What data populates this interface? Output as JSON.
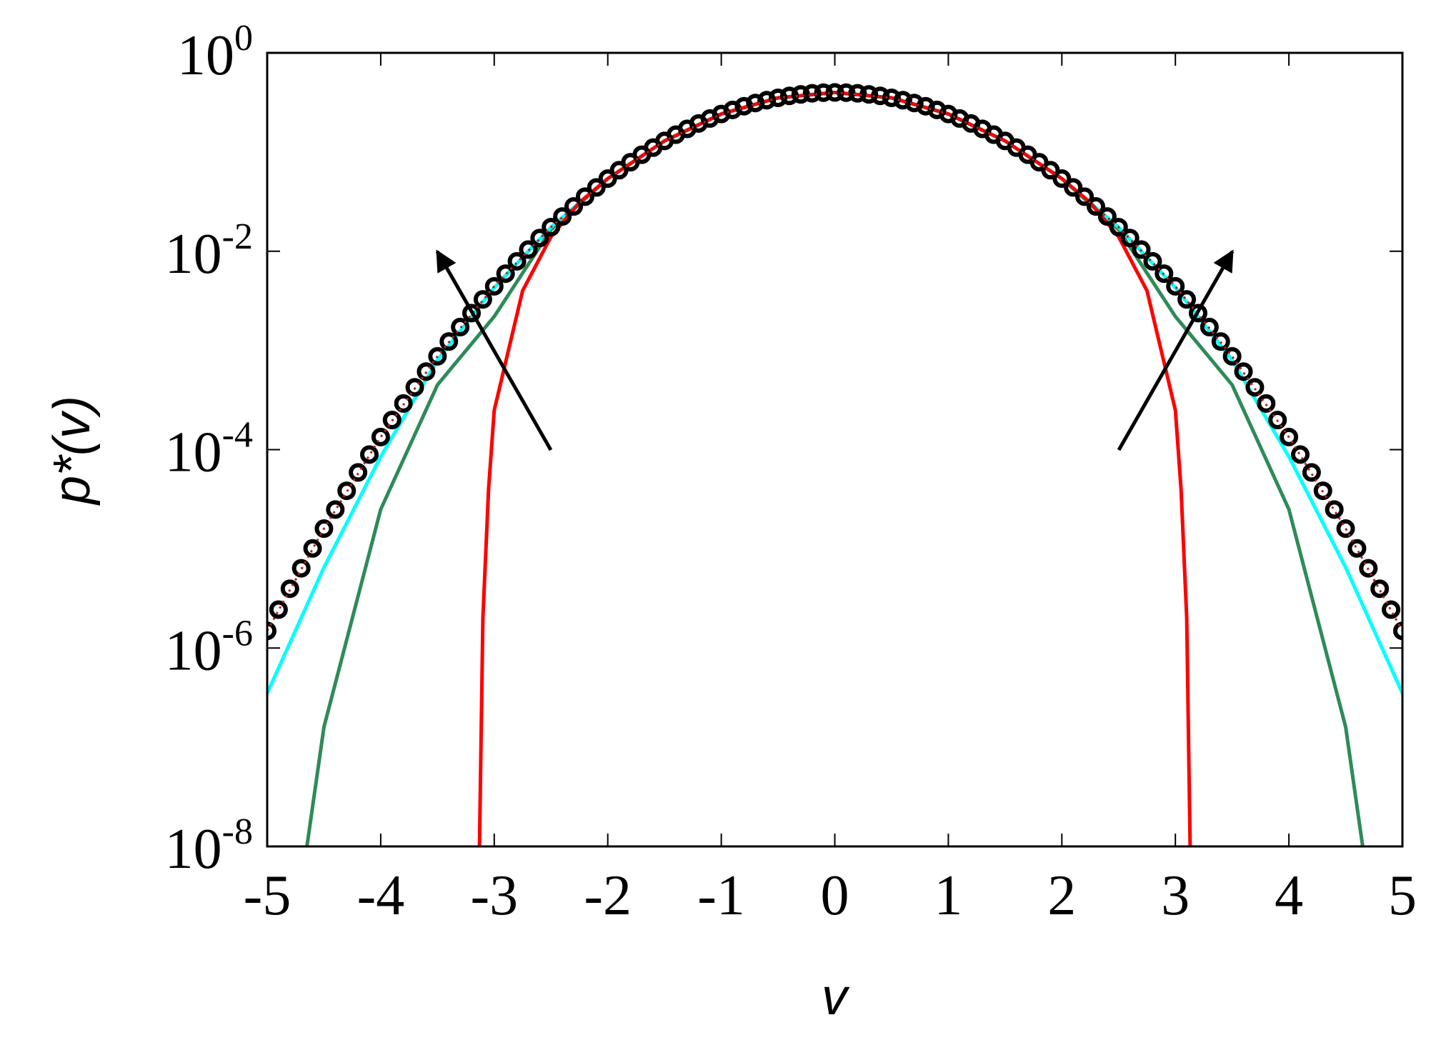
{
  "chart_data": {
    "type": "line",
    "x_label": "v",
    "y_label": "p*(v)",
    "xlim": [
      -5,
      5
    ],
    "ylim": [
      1e-08,
      1
    ],
    "y_scale": "log",
    "xticks": [
      -5,
      -4,
      -3,
      -2,
      -1,
      0,
      1,
      2,
      3,
      4,
      5
    ],
    "yticks": [
      {
        "value": 1e-08,
        "label": "10^-8"
      },
      {
        "value": 1e-06,
        "label": "10^-6"
      },
      {
        "value": 0.0001,
        "label": "10^-4"
      },
      {
        "value": 0.01,
        "label": "10^-2"
      },
      {
        "value": 1,
        "label": "10^0"
      }
    ],
    "series": [
      {
        "color": "#2e8b57",
        "style": "line",
        "x": [
          -4.65,
          -4.5,
          -4,
          -3.5,
          -3,
          -2.5,
          -2,
          -1.5,
          -1,
          -0.5,
          0,
          0.5,
          1,
          1.5,
          2,
          2.5,
          3,
          3.5,
          4,
          4.5,
          4.65
        ],
        "values": [
          1e-08,
          1.6e-07,
          2.5e-05,
          0.00045,
          0.0022,
          0.0165,
          0.054,
          0.1295,
          0.242,
          0.3521,
          0.3989,
          0.3521,
          0.242,
          0.1295,
          0.054,
          0.0165,
          0.0022,
          0.00045,
          2.5e-05,
          1.6e-07,
          1e-08
        ]
      },
      {
        "color": "#00ffff",
        "style": "line",
        "x": [
          -5,
          -4.5,
          -4,
          -3.5,
          -3,
          -2.5,
          -2,
          -1.5,
          -1,
          -0.5,
          0,
          0.5,
          1,
          1.5,
          2,
          2.5,
          3,
          3.5,
          4,
          4.5,
          5
        ],
        "values": [
          3.5e-07,
          6.5e-06,
          8.5e-05,
          0.0008,
          0.0043,
          0.0175,
          0.054,
          0.1295,
          0.242,
          0.3521,
          0.3989,
          0.3521,
          0.242,
          0.1295,
          0.054,
          0.0175,
          0.0043,
          0.0008,
          8.5e-05,
          6.5e-06,
          3.5e-07
        ]
      },
      {
        "color": "#ff0000",
        "style": "line",
        "x": [
          -3.13,
          -3.1,
          -3.05,
          -3,
          -2.75,
          -2.5,
          -2.25,
          -2,
          -1.5,
          -1,
          -0.5,
          0,
          0.5,
          1,
          1.5,
          2,
          2.25,
          2.5,
          2.75,
          3,
          3.05,
          3.1,
          3.13
        ],
        "values": [
          1e-08,
          2e-06,
          4e-05,
          0.00025,
          0.004,
          0.014,
          0.031,
          0.054,
          0.1295,
          0.242,
          0.3521,
          0.3989,
          0.3521,
          0.242,
          0.1295,
          0.054,
          0.031,
          0.014,
          0.004,
          0.00025,
          4e-05,
          2e-06,
          1e-08
        ]
      },
      {
        "color": "#000000",
        "style": "circles",
        "x": [
          -5,
          -4.9,
          -4.8,
          -4.7,
          -4.6,
          -4.5,
          -4.4,
          -4.3,
          -4.2,
          -4.1,
          -4,
          -3.9,
          -3.8,
          -3.7,
          -3.6,
          -3.5,
          -3.4,
          -3.3,
          -3.2,
          -3.1,
          -3,
          -2.9,
          -2.8,
          -2.7,
          -2.6,
          -2.5,
          -2.4,
          -2.3,
          -2.2,
          -2.1,
          -2,
          -1.9,
          -1.8,
          -1.7,
          -1.6,
          -1.5,
          -1.4,
          -1.3,
          -1.2,
          -1.1,
          -1,
          -0.9,
          -0.8,
          -0.7,
          -0.6,
          -0.5,
          -0.4,
          -0.3,
          -0.2,
          -0.1,
          0,
          0.1,
          0.2,
          0.3,
          0.4,
          0.5,
          0.6,
          0.7,
          0.8,
          0.9,
          1,
          1.1,
          1.2,
          1.3,
          1.4,
          1.5,
          1.6,
          1.7,
          1.8,
          1.9,
          2,
          2.1,
          2.2,
          2.3,
          2.4,
          2.5,
          2.6,
          2.7,
          2.8,
          2.9,
          3,
          3.1,
          3.2,
          3.3,
          3.4,
          3.5,
          3.6,
          3.7,
          3.8,
          3.9,
          4,
          4.1,
          4.2,
          4.3,
          4.4,
          4.5,
          4.6,
          4.7,
          4.8,
          4.9,
          5
        ],
        "values": [
          1.49e-06,
          2.44e-06,
          3.96e-06,
          6.37e-06,
          1.01e-05,
          1.6e-05,
          2.49e-05,
          3.85e-05,
          5.89e-05,
          8.93e-05,
          0.000134,
          0.000199,
          0.000292,
          0.000425,
          0.000612,
          0.000873,
          0.00123,
          0.00172,
          0.00238,
          0.00327,
          0.00443,
          0.00595,
          0.00792,
          0.0104,
          0.0136,
          0.0175,
          0.0224,
          0.0283,
          0.0355,
          0.044,
          0.054,
          0.0656,
          0.079,
          0.094,
          0.1109,
          0.1295,
          0.1497,
          0.1714,
          0.1942,
          0.2179,
          0.242,
          0.2661,
          0.2897,
          0.3123,
          0.3332,
          0.3521,
          0.3683,
          0.3814,
          0.391,
          0.397,
          0.3989,
          0.397,
          0.391,
          0.3814,
          0.3683,
          0.3521,
          0.3332,
          0.3123,
          0.2897,
          0.2661,
          0.242,
          0.2179,
          0.1942,
          0.1714,
          0.1497,
          0.1295,
          0.1109,
          0.094,
          0.079,
          0.0656,
          0.054,
          0.044,
          0.0355,
          0.0283,
          0.0224,
          0.0175,
          0.0136,
          0.0104,
          0.00792,
          0.00595,
          0.00443,
          0.00327,
          0.00238,
          0.00172,
          0.00123,
          0.000873,
          0.000612,
          0.000425,
          0.000292,
          0.000199,
          0.000134,
          8.93e-05,
          5.89e-05,
          3.85e-05,
          2.49e-05,
          1.6e-05,
          1.01e-05,
          6.37e-06,
          3.96e-06,
          2.44e-06,
          1.49e-06
        ]
      },
      {
        "color": "#b22222",
        "style": "dotted",
        "x": [
          -5,
          -4.5,
          -4,
          -3.5,
          -3,
          -2.5,
          -2,
          -1.5,
          -1,
          -0.5,
          0,
          0.5,
          1,
          1.5,
          2,
          2.5,
          3,
          3.5,
          4,
          4.5,
          5
        ],
        "values": [
          1.49e-06,
          1.6e-05,
          0.000134,
          0.000873,
          0.00443,
          0.0175,
          0.054,
          0.1295,
          0.242,
          0.3521,
          0.3989,
          0.3521,
          0.242,
          0.1295,
          0.054,
          0.0175,
          0.00443,
          0.000873,
          0.000134,
          1.6e-05,
          1.49e-06
        ]
      }
    ]
  }
}
